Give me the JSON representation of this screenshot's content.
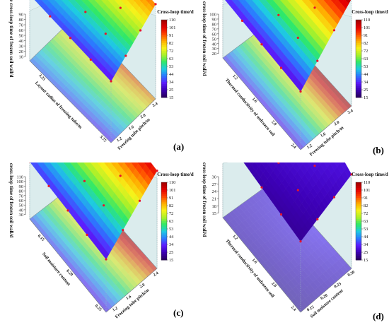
{
  "colorbar": {
    "title": "Cross-loop time/d",
    "ticks": [
      "110",
      "101",
      "91",
      "82",
      "72",
      "63",
      "53",
      "44",
      "34",
      "25",
      "15"
    ],
    "min": 15,
    "max": 110,
    "colors": [
      "#2a0066",
      "#3d00b8",
      "#5b1dff",
      "#2a7bff",
      "#1ecbe1",
      "#2ee86a",
      "#a8f02a",
      "#f5f21a",
      "#ffb000",
      "#ff4a00",
      "#e60000",
      "#a50000"
    ]
  },
  "chart_data": [
    {
      "type": "surface",
      "panel_label": "(a)",
      "zlabel": "The cross-loop time of frozen soil wall/d",
      "xlabel": "Layout radius of freezing tube/m",
      "ylabel": "Freezing tube pitch/m",
      "z_ticks": [
        "90",
        "80",
        "70",
        "60",
        "50",
        "40",
        "30",
        "20",
        "10"
      ],
      "x_ticks": [
        "3.25",
        "3.75"
      ],
      "y_ticks": [
        "1.2",
        "1.6",
        "2.0",
        "2.4"
      ],
      "zlim": [
        10,
        90
      ],
      "corners": {
        "near_left": 38,
        "near_right": 30,
        "far_left": 92,
        "far_right": 88
      }
    },
    {
      "type": "surface",
      "panel_label": "(b)",
      "zlabel": "The cross-loop time of frozen soil wall/d",
      "xlabel": "Thermal conductivity of unfrozen soil",
      "ylabel": "Freezing tube pitch/m",
      "z_ticks": [
        "100",
        "90",
        "80",
        "70",
        "60",
        "50",
        "40",
        "30",
        "20"
      ],
      "x_ticks": [
        "1.2",
        "1.6",
        "2.0",
        "2.4"
      ],
      "y_ticks": [
        "1.2",
        "1.6",
        "2.0",
        "2.4"
      ],
      "zlim": [
        20,
        100
      ],
      "corners": {
        "near_left": 32,
        "near_right": 28,
        "far_left": 100,
        "far_right": 108
      }
    },
    {
      "type": "surface",
      "panel_label": "(c)",
      "zlabel": "The cross-loop time of frozen soil wall/d",
      "xlabel": "Soil moisture content",
      "ylabel": "Freezing tube pitch/m",
      "z_ticks": [
        "110",
        "100",
        "90",
        "80",
        "70",
        "60",
        "50",
        "40",
        "30"
      ],
      "x_ticks": [
        "0.15",
        "0.20",
        "0.25"
      ],
      "y_ticks": [
        "1.2",
        "1.6",
        "2.0",
        "2.4"
      ],
      "zlim": [
        30,
        110
      ],
      "corners": {
        "near_left": 35,
        "near_right": 28,
        "far_left": 110,
        "far_right": 100
      }
    },
    {
      "type": "surface",
      "panel_label": "(d)",
      "zlabel": "The cross-loop time of frozen soil wall/d",
      "xlabel": "Thermal conductivity of unfrozen soil",
      "ylabel": "Soil moisture content",
      "z_ticks": [
        "30",
        "27",
        "24",
        "21",
        "18",
        "15"
      ],
      "x_ticks": [
        "1.2",
        "1.6",
        "2.0",
        "2.4"
      ],
      "y_ticks": [
        "0.15",
        "0.20",
        "0.25",
        "0.30"
      ],
      "zlim": [
        15,
        30
      ],
      "corners": {
        "near_left": 24,
        "near_right": 20,
        "far_left": 30,
        "far_right": 27
      }
    }
  ]
}
